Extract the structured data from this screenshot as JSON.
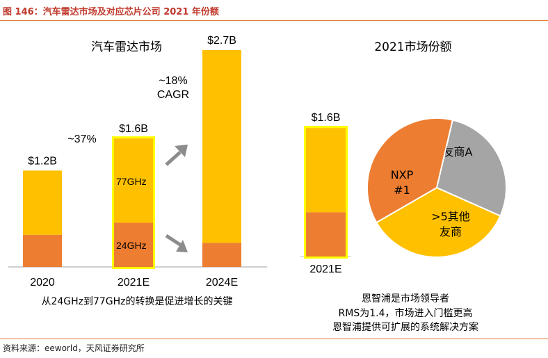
{
  "figure_title": "图 146：汽车雷达市场及对应芯片公司 2021 年份额",
  "source": "资料来源：eeworld，天风证券研究所",
  "colors": {
    "yellow": "#FFC000",
    "orange": "#ED7D31",
    "gray": "#A5A5A5",
    "highlight": "#FFFF00",
    "arrow": "#8C8C8C",
    "rule": "#E07B39"
  },
  "chart_data": [
    {
      "type": "bar",
      "title": "汽车雷达市场",
      "categories": [
        "2020",
        "2021E",
        "2024E"
      ],
      "series": [
        {
          "name": "24GHz",
          "values": [
            0.4,
            0.55,
            0.3
          ]
        },
        {
          "name": "77GHz",
          "values": [
            0.8,
            1.05,
            2.4
          ]
        }
      ],
      "totals": [
        1.2,
        1.6,
        2.7
      ],
      "total_labels": [
        "$1.2B",
        "$1.6B",
        "$2.7B"
      ],
      "segment_labels": [
        "77GHz",
        "24GHz"
      ],
      "growth_annotations": [
        "~37%",
        "~18%",
        "CAGR"
      ],
      "caption": "从24GHz到77GHz的转换是促进增长的关键",
      "ylim": [
        0,
        2.7
      ]
    },
    {
      "type": "bar",
      "title": "2021市场份额",
      "categories": [
        "2021E"
      ],
      "series": [
        {
          "name": "24GHz",
          "values": [
            0.55
          ]
        },
        {
          "name": "77GHz",
          "values": [
            1.05
          ]
        }
      ],
      "total_labels": [
        "$1.6B"
      ],
      "ylim": [
        0,
        2.7
      ]
    },
    {
      "type": "pie",
      "labels": [
        "NXP\n#1",
        "友商A",
        ">5其他\n友商"
      ],
      "label_lines": [
        [
          "NXP",
          "#1"
        ],
        [
          "友商A"
        ],
        [
          ">5其他",
          "友商"
        ]
      ],
      "values": [
        37,
        28,
        35
      ],
      "colors": [
        "#ED7D31",
        "#A5A5A5",
        "#FFC000"
      ],
      "notes": [
        "恩智浦是市场领导者",
        "RMS为1.4，市场进入门槛更高",
        "恩智浦提供可扩展的系统解决方案"
      ]
    }
  ]
}
